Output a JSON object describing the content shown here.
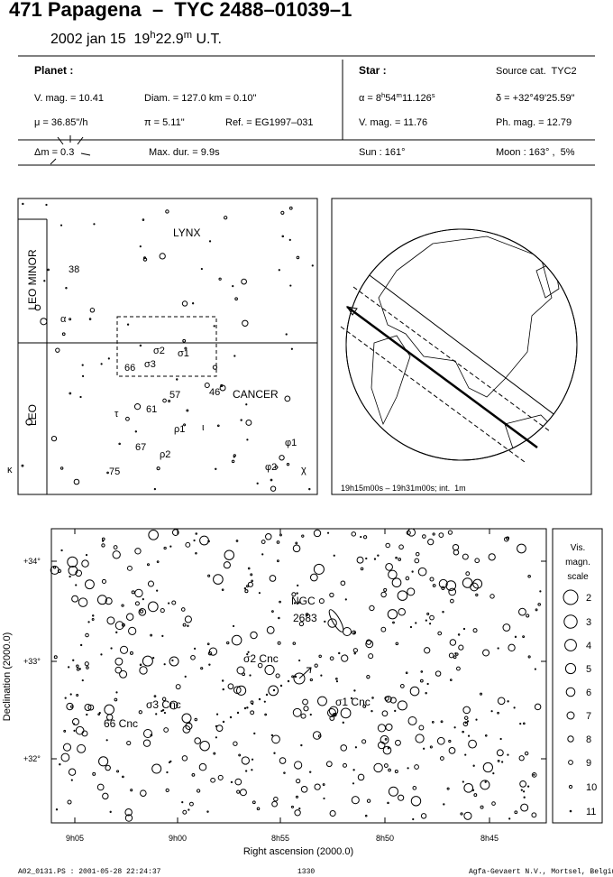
{
  "header": {
    "title": "471 Papagena  –  TYC 2488–01039–1",
    "time": [
      {
        "text": "2002 jan 15  19"
      },
      {
        "text": "h",
        "sup": true
      },
      {
        "text": "22.9"
      },
      {
        "text": "m",
        "sup": true
      },
      {
        "text": " U.T."
      }
    ]
  },
  "planet": {
    "heading": "Planet :",
    "vmag": "V. mag. = 10.41",
    "diam": "Diam. = 127.0 km = 0.10\"",
    "motion": "μ = 36.85\"/h",
    "parallax": "π = 5.11\"",
    "ref": "Ref. = EG1997–031",
    "dm": "Δm = 0.3",
    "maxdur": "Max. dur. = 9.9s"
  },
  "star": {
    "heading": "Star :",
    "source": "Source cat.  TYC2",
    "ra": [
      {
        "text": "α = 8"
      },
      {
        "text": "h",
        "sup": true
      },
      {
        "text": "54"
      },
      {
        "text": "m",
        "sup": true
      },
      {
        "text": "11.126"
      },
      {
        "text": "s",
        "sup": true
      }
    ],
    "dec": "δ = +32°49'25.59\"",
    "vmag": "V. mag. = 11.76",
    "phmag": "Ph. mag. = 12.79",
    "sun": "Sun : 161°",
    "moon": "Moon : 163° ,  5%"
  },
  "finder": {
    "constellations": [
      "LYNX",
      "LEO MINOR",
      "LEO",
      "CANCER"
    ],
    "labels": [
      "38",
      "α",
      "σ2",
      "σ1",
      "66",
      "σ3",
      "57",
      "46",
      "61",
      "τ",
      "ρ1",
      "ι",
      "67",
      "ρ2",
      "φ1",
      "φ2",
      "χ",
      "75",
      "κ"
    ]
  },
  "globe": {
    "caption": "19h15m00s – 19h31m00s; int.  1m"
  },
  "starchart": {
    "xlabel": "Right ascension (2000.0)",
    "ylabel": "Declination (2000.0)",
    "xticks": [
      "9h05",
      "9h00",
      "8h55",
      "8h50",
      "8h45"
    ],
    "yticks": [
      "+34°",
      "+33°",
      "+32°"
    ],
    "labels": [
      "NGC",
      "2683",
      "σ2 Cnc",
      "σ1 Cnc",
      "σ3 Cnc",
      "66 Cnc"
    ]
  },
  "scale": {
    "title": [
      "Vis.",
      "magn.",
      "scale"
    ],
    "mags": [
      "2",
      "3",
      "4",
      "5",
      "6",
      "7",
      "8",
      "9",
      "10",
      "11"
    ]
  },
  "footer": {
    "file": "A02_0131.PS : 2001-05-28 22:24:37",
    "page": "1330",
    "org": "Agfa-Gevaert N.V., Mortsel, Belgium"
  }
}
